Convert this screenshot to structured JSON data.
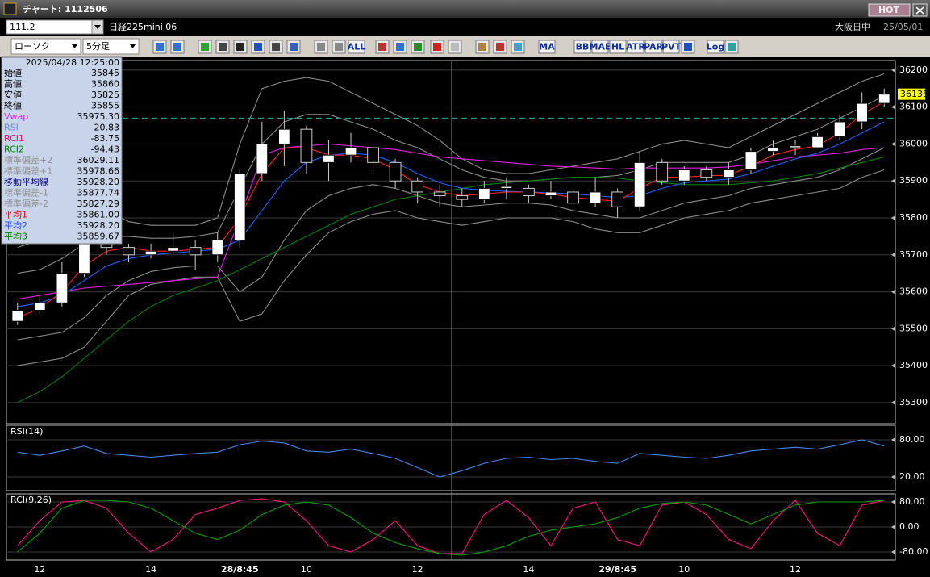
{
  "window": {
    "title": "チャート: 1112506",
    "hot": "HOT"
  },
  "toolbar": {
    "code": "111.2",
    "instrument": "日経225mini 06",
    "session": "大阪日中",
    "date": "25/05/01",
    "chart_style": "ローソク",
    "interval": "5分足",
    "buttons": [
      "ALL",
      "MA",
      "BB",
      "MAE",
      "HL",
      "ATR",
      "PAR",
      "PVT",
      "Log"
    ]
  },
  "info_panel": {
    "timestamp": "2025/04/28  12:25:00",
    "rows": [
      {
        "label": "始値",
        "value": "35845",
        "color": "#000000"
      },
      {
        "label": "高値",
        "value": "35860",
        "color": "#000000"
      },
      {
        "label": "安値",
        "value": "35825",
        "color": "#000000"
      },
      {
        "label": "終値",
        "value": "35855",
        "color": "#000000"
      },
      {
        "label": "Vwap",
        "value": "35975.30",
        "color": "#e020e0"
      },
      {
        "label": "RSI",
        "value": "20.83",
        "color": "#6a8ad8"
      },
      {
        "label": "RCI1",
        "value": "-83.75",
        "color": "#e01060"
      },
      {
        "label": "RCI2",
        "value": "-94.43",
        "color": "#008000"
      },
      {
        "label": "標準偏差+2",
        "value": "36029.11",
        "color": "#909090"
      },
      {
        "label": "標準偏差+1",
        "value": "35978.66",
        "color": "#909090"
      },
      {
        "label": "移動平均線",
        "value": "35928.20",
        "color": "#000080"
      },
      {
        "label": "標準偏差-1",
        "value": "35877.74",
        "color": "#909090"
      },
      {
        "label": "標準偏差-2",
        "value": "35827.29",
        "color": "#909090"
      },
      {
        "label": "平均1",
        "value": "35861.00",
        "color": "#e00000"
      },
      {
        "label": "平均2",
        "value": "35928.20",
        "color": "#2050e0"
      },
      {
        "label": "平均3",
        "value": "35859.67",
        "color": "#008000"
      }
    ]
  },
  "chart_data": [
    {
      "type": "candlestick",
      "categories": [
        null,
        "12",
        null,
        null,
        null,
        null,
        "14",
        null,
        null,
        null,
        "28/8:45",
        null,
        null,
        "10",
        null,
        null,
        null,
        null,
        "12",
        null,
        null,
        null,
        null,
        "14",
        null,
        null,
        null,
        "29/8:45",
        null,
        null,
        "10",
        null,
        null,
        null,
        null,
        "12",
        null,
        null,
        null,
        null
      ],
      "open": [
        35520,
        35550,
        35570,
        35650,
        35730,
        35720,
        35700,
        35710,
        35720,
        35700,
        35740,
        35920,
        36000,
        36040,
        35950,
        35970,
        35990,
        35950,
        35900,
        35870,
        35860,
        35850,
        35880,
        35880,
        35860,
        35870,
        35840,
        35870,
        35830,
        35950,
        35900,
        35930,
        35910,
        35930,
        35980,
        35990,
        35990,
        36020,
        36060,
        36110
      ],
      "high": [
        35570,
        35590,
        35680,
        35760,
        35750,
        35730,
        35730,
        35760,
        35740,
        35760,
        35930,
        36060,
        36090,
        36050,
        36010,
        36030,
        36000,
        35960,
        35910,
        35890,
        35880,
        35900,
        35910,
        35890,
        35900,
        35880,
        35910,
        35880,
        35980,
        35960,
        35940,
        35940,
        35950,
        35990,
        36010,
        36010,
        36030,
        36080,
        36140,
        36150
      ],
      "low": [
        35510,
        35540,
        35560,
        35640,
        35700,
        35680,
        35690,
        35700,
        35660,
        35680,
        35720,
        35900,
        35940,
        35920,
        35900,
        35950,
        35920,
        35880,
        35840,
        35830,
        35830,
        35840,
        35850,
        35840,
        35850,
        35810,
        35830,
        35800,
        35820,
        35890,
        35890,
        35900,
        35890,
        35920,
        35970,
        35970,
        35990,
        36010,
        36040,
        36100
      ],
      "close": [
        35550,
        35570,
        35650,
        35730,
        35720,
        35700,
        35710,
        35720,
        35700,
        35740,
        35920,
        36000,
        36040,
        35950,
        35970,
        35990,
        35950,
        35900,
        35870,
        35860,
        35850,
        35880,
        35885,
        35860,
        35870,
        35840,
        35870,
        35830,
        35950,
        35900,
        35930,
        35910,
        35930,
        35980,
        35990,
        35995,
        36020,
        36060,
        36110,
        36135
      ],
      "up_color": "#ffffff",
      "down_color": "#000000",
      "series": [
        {
          "color": "#8c8c8c",
          "values": [
            35720,
            35740,
            35780,
            35820,
            35820,
            35790,
            35780,
            35780,
            35780,
            35800,
            36000,
            36150,
            36170,
            36180,
            36170,
            36140,
            36110,
            36080,
            36050,
            36010,
            35960,
            35930,
            35920,
            35920,
            35930,
            35940,
            35950,
            35960,
            35980,
            36000,
            36010,
            36000,
            35990,
            36020,
            36050,
            36080,
            36110,
            36140,
            36170,
            36190
          ]
        },
        {
          "color": "#8c8c8c",
          "values": [
            35650,
            35660,
            35690,
            35730,
            35750,
            35750,
            35745,
            35745,
            35750,
            35760,
            35880,
            36000,
            36060,
            36080,
            36080,
            36060,
            36040,
            36010,
            35990,
            35960,
            35930,
            35910,
            35900,
            35900,
            35905,
            35910,
            35910,
            35915,
            35930,
            35950,
            35950,
            35950,
            35950,
            35970,
            36000,
            36020,
            36040,
            36070,
            36100,
            36130
          ]
        },
        {
          "color": "#8c8c8c",
          "values": [
            35470,
            35480,
            35490,
            35530,
            35590,
            35630,
            35655,
            35665,
            35670,
            35670,
            35600,
            35640,
            35740,
            35820,
            35860,
            35880,
            35890,
            35880,
            35860,
            35840,
            35830,
            35835,
            35840,
            35840,
            35835,
            35820,
            35810,
            35800,
            35800,
            35820,
            35840,
            35850,
            35860,
            35880,
            35890,
            35900,
            35910,
            35930,
            35960,
            35990
          ]
        },
        {
          "color": "#8c8c8c",
          "values": [
            35400,
            35410,
            35420,
            35450,
            35520,
            35590,
            35620,
            35630,
            35640,
            35640,
            35520,
            35540,
            35630,
            35700,
            35760,
            35790,
            35810,
            35820,
            35800,
            35790,
            35780,
            35790,
            35800,
            35800,
            35800,
            35790,
            35770,
            35760,
            35760,
            35780,
            35800,
            35810,
            35820,
            35840,
            35850,
            35860,
            35870,
            35880,
            35910,
            35930
          ]
        },
        {
          "color": "#008000",
          "values": [
            35300,
            35330,
            35370,
            35420,
            35470,
            35520,
            35560,
            35590,
            35610,
            35630,
            35660,
            35690,
            35720,
            35750,
            35780,
            35810,
            35830,
            35850,
            35860,
            35870,
            35880,
            35890,
            35895,
            35900,
            35905,
            35910,
            35910,
            35908,
            35900,
            35895,
            35890,
            35890,
            35890,
            35895,
            35900,
            35910,
            35920,
            35935,
            35950,
            35965
          ]
        },
        {
          "color": "#e020e0",
          "values": [
            35580,
            35590,
            35600,
            35610,
            35615,
            35620,
            35625,
            35630,
            35635,
            35640,
            35800,
            35970,
            35990,
            35995,
            36000,
            35995,
            35990,
            35985,
            35975,
            35965,
            35960,
            35955,
            35950,
            35945,
            35940,
            35938,
            35935,
            35932,
            35935,
            35935,
            35935,
            35935,
            35938,
            35945,
            35955,
            35965,
            35970,
            35975,
            35985,
            35990
          ]
        },
        {
          "color": "#2060ff",
          "values": [
            35560,
            35570,
            35590,
            35630,
            35670,
            35690,
            35700,
            35705,
            35710,
            35715,
            35740,
            35820,
            35900,
            35950,
            35970,
            35975,
            35970,
            35950,
            35920,
            35895,
            35880,
            35875,
            35872,
            35870,
            35868,
            35865,
            35860,
            35855,
            35860,
            35880,
            35895,
            35900,
            35905,
            35920,
            35940,
            35960,
            35975,
            36000,
            36030,
            36060
          ]
        },
        {
          "color": "#ff2020",
          "values": [
            35530,
            35555,
            35600,
            35670,
            35710,
            35720,
            35710,
            35710,
            35715,
            35720,
            35800,
            35920,
            35990,
            35990,
            35970,
            35970,
            35960,
            35930,
            35890,
            35870,
            35860,
            35865,
            35870,
            35870,
            35865,
            35855,
            35850,
            35845,
            35880,
            35910,
            35910,
            35915,
            35915,
            35940,
            35970,
            35985,
            35995,
            36030,
            36080,
            36115
          ]
        }
      ],
      "ylim": [
        35243,
        36226
      ],
      "yticks": [
        35300,
        35400,
        35500,
        35600,
        35700,
        35800,
        35900,
        36000,
        36100,
        36200
      ],
      "grid": true,
      "hline": 36070,
      "hline_color": "#20a0a0",
      "last_price": 36135,
      "last_price_color": "#ffff00"
    },
    {
      "type": "line",
      "title": "RSI(14)",
      "series": [
        {
          "color": "#4a86e8",
          "values": [
            60,
            55,
            62,
            70,
            58,
            55,
            52,
            55,
            58,
            60,
            72,
            78,
            75,
            62,
            60,
            65,
            58,
            50,
            35,
            20,
            30,
            42,
            50,
            52,
            48,
            50,
            45,
            42,
            58,
            55,
            52,
            50,
            55,
            62,
            65,
            68,
            65,
            72,
            80,
            70
          ]
        }
      ],
      "ylim": [
        -2.2,
        103.5
      ],
      "yticks": [
        {
          "value": 80,
          "label": "80.00"
        },
        {
          "value": 20,
          "label": "20.00"
        }
      ],
      "grid": true
    },
    {
      "type": "line",
      "title": "RCI(9,26)",
      "series": [
        {
          "color": "#ff1080",
          "values": [
            -60,
            20,
            80,
            85,
            60,
            -20,
            -80,
            -40,
            40,
            60,
            85,
            90,
            80,
            20,
            -60,
            -80,
            -40,
            20,
            -60,
            -85,
            -85,
            40,
            85,
            30,
            -60,
            60,
            80,
            -40,
            -60,
            70,
            80,
            40,
            -40,
            -70,
            20,
            85,
            -20,
            -60,
            70,
            85
          ]
        },
        {
          "color": "#00a000",
          "values": [
            -80,
            -20,
            60,
            85,
            85,
            80,
            60,
            20,
            -20,
            -40,
            -10,
            40,
            70,
            80,
            70,
            30,
            -20,
            -50,
            -70,
            -85,
            -90,
            -80,
            -60,
            -30,
            -10,
            0,
            10,
            30,
            60,
            75,
            80,
            70,
            40,
            10,
            40,
            70,
            80,
            80,
            80,
            85
          ]
        }
      ],
      "ylim": [
        -105.8,
        105.8
      ],
      "yticks": [
        {
          "value": 80,
          "label": "80.00"
        },
        {
          "value": 0,
          "label": "0.00"
        },
        {
          "value": -80,
          "label": "-80.00"
        }
      ],
      "grid": true
    }
  ]
}
